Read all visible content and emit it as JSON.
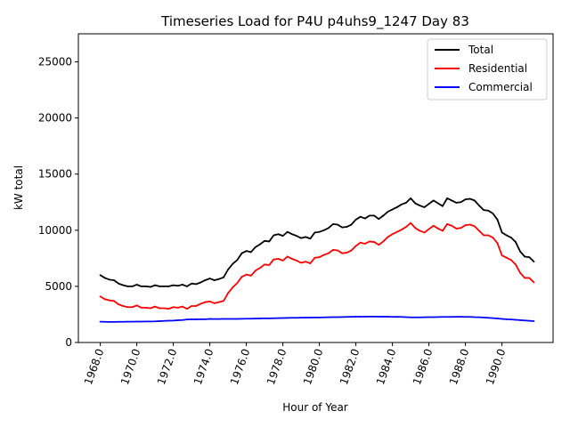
{
  "chart_data": {
    "type": "line",
    "title": "Timeseries Load for P4U p4uhs9_1247  Day 83",
    "xlabel": "Hour of Year",
    "ylabel": "kW total",
    "xlim": [
      1966.8,
      1992.8
    ],
    "ylim": [
      0,
      27500
    ],
    "xticks": [
      1968,
      1970,
      1972,
      1974,
      1976,
      1978,
      1980,
      1982,
      1984,
      1986,
      1988,
      1990
    ],
    "xtick_labels": [
      "1968.0",
      "1970.0",
      "1972.0",
      "1974.0",
      "1976.0",
      "1978.0",
      "1980.0",
      "1982.0",
      "1984.0",
      "1986.0",
      "1988.0",
      "1990.0"
    ],
    "yticks": [
      0,
      5000,
      10000,
      15000,
      20000,
      25000
    ],
    "ytick_labels": [
      "0",
      "5000",
      "10000",
      "15000",
      "20000",
      "25000"
    ],
    "legend_position": "top-right",
    "x": [
      1968.0,
      1968.25,
      1968.5,
      1968.75,
      1969.0,
      1969.25,
      1969.5,
      1969.75,
      1970.0,
      1970.25,
      1970.5,
      1970.75,
      1971.0,
      1971.25,
      1971.5,
      1971.75,
      1972.0,
      1972.25,
      1972.5,
      1972.75,
      1973.0,
      1973.25,
      1973.5,
      1973.75,
      1974.0,
      1974.25,
      1974.5,
      1974.75,
      1975.0,
      1975.25,
      1975.5,
      1975.75,
      1976.0,
      1976.25,
      1976.5,
      1976.75,
      1977.0,
      1977.25,
      1977.5,
      1977.75,
      1978.0,
      1978.25,
      1978.5,
      1978.75,
      1979.0,
      1979.25,
      1979.5,
      1979.75,
      1980.0,
      1980.25,
      1980.5,
      1980.75,
      1981.0,
      1981.25,
      1981.5,
      1981.75,
      1982.0,
      1982.25,
      1982.5,
      1982.75,
      1983.0,
      1983.25,
      1983.5,
      1983.75,
      1984.0,
      1984.25,
      1984.5,
      1984.75,
      1985.0,
      1985.25,
      1985.5,
      1985.75,
      1986.0,
      1986.25,
      1986.5,
      1986.75,
      1987.0,
      1987.25,
      1987.5,
      1987.75,
      1988.0,
      1988.25,
      1988.5,
      1988.75,
      1989.0,
      1989.25,
      1989.5,
      1989.75,
      1990.0,
      1990.25,
      1990.5,
      1990.75,
      1991.0,
      1991.25,
      1991.5,
      1991.75
    ],
    "series": [
      {
        "name": "Total",
        "color": "#000000",
        "values": [
          6000,
          5750,
          5600,
          5550,
          5250,
          5100,
          5000,
          5000,
          5150,
          5000,
          5000,
          4950,
          5100,
          5000,
          5000,
          5000,
          5100,
          5050,
          5150,
          5000,
          5250,
          5200,
          5350,
          5550,
          5700,
          5550,
          5650,
          5800,
          6500,
          7000,
          7350,
          7950,
          8150,
          8050,
          8500,
          8750,
          9050,
          9000,
          9550,
          9650,
          9500,
          9850,
          9650,
          9500,
          9300,
          9400,
          9250,
          9800,
          9850,
          10000,
          10200,
          10550,
          10500,
          10250,
          10300,
          10500,
          10950,
          11200,
          11050,
          11300,
          11300,
          11000,
          11300,
          11650,
          11850,
          12050,
          12300,
          12450,
          12850,
          12400,
          12200,
          12050,
          12350,
          12650,
          12400,
          12150,
          12850,
          12650,
          12450,
          12500,
          12750,
          12800,
          12650,
          12200,
          11800,
          11750,
          11500,
          10950,
          9800,
          9550,
          9350,
          8950,
          8100,
          7650,
          7600,
          7200
        ]
      },
      {
        "name": "Residential",
        "color": "#ff0000",
        "values": [
          4100,
          3850,
          3750,
          3700,
          3400,
          3250,
          3150,
          3150,
          3300,
          3100,
          3100,
          3050,
          3200,
          3050,
          3050,
          3000,
          3150,
          3100,
          3200,
          3000,
          3250,
          3250,
          3450,
          3600,
          3650,
          3500,
          3600,
          3700,
          4400,
          4900,
          5300,
          5850,
          6050,
          5950,
          6400,
          6650,
          6950,
          6900,
          7400,
          7450,
          7300,
          7650,
          7450,
          7300,
          7100,
          7200,
          7050,
          7550,
          7600,
          7800,
          7950,
          8250,
          8200,
          7950,
          8000,
          8200,
          8600,
          8900,
          8800,
          9000,
          8950,
          8700,
          9000,
          9400,
          9650,
          9850,
          10050,
          10300,
          10650,
          10200,
          9950,
          9800,
          10100,
          10400,
          10150,
          9950,
          10550,
          10400,
          10150,
          10200,
          10450,
          10500,
          10350,
          9950,
          9550,
          9550,
          9350,
          8850,
          7750,
          7550,
          7350,
          6950,
          6200,
          5750,
          5750,
          5350
        ]
      },
      {
        "name": "Commercial",
        "color": "#0000ff",
        "values": [
          1850,
          1840,
          1830,
          1830,
          1840,
          1840,
          1850,
          1850,
          1860,
          1860,
          1870,
          1870,
          1880,
          1900,
          1920,
          1940,
          1950,
          1980,
          2000,
          2050,
          2060,
          2060,
          2070,
          2070,
          2100,
          2090,
          2090,
          2100,
          2100,
          2100,
          2100,
          2110,
          2120,
          2120,
          2130,
          2140,
          2150,
          2150,
          2160,
          2170,
          2180,
          2190,
          2200,
          2200,
          2210,
          2220,
          2220,
          2230,
          2230,
          2240,
          2250,
          2260,
          2260,
          2270,
          2280,
          2290,
          2300,
          2300,
          2300,
          2310,
          2310,
          2300,
          2310,
          2300,
          2280,
          2290,
          2280,
          2260,
          2240,
          2240,
          2240,
          2250,
          2260,
          2260,
          2270,
          2280,
          2280,
          2280,
          2290,
          2290,
          2280,
          2280,
          2260,
          2250,
          2230,
          2200,
          2170,
          2140,
          2100,
          2070,
          2050,
          2020,
          1990,
          1960,
          1930,
          1900
        ]
      }
    ]
  }
}
